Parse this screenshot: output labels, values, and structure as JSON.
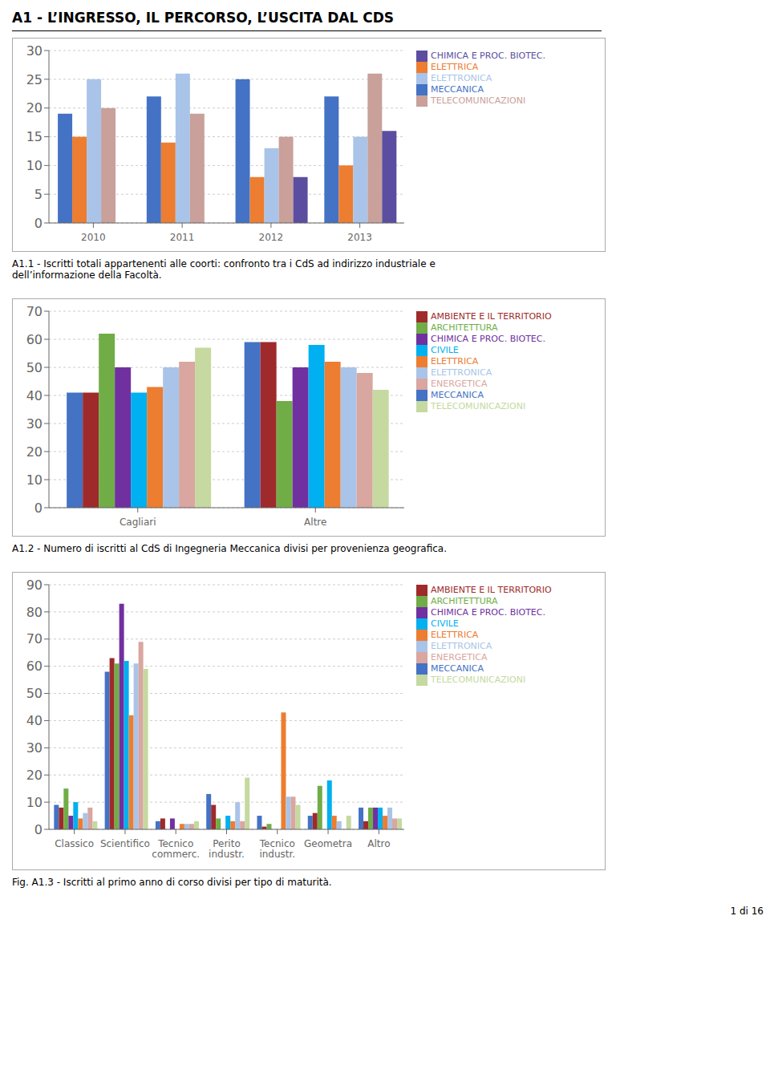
{
  "title": "A1 - L’INGRESSO, IL PERCORSO, L’USCITA DAL CDS",
  "annotations": [
    "1 di 16"
  ],
  "chart_data": [
    {
      "type": "bar",
      "title": "A1.1 - Iscritti totali appartenenti alle coorti: confronto tra i CdS ad indirizzo industriale e\ndell’informazione della Facoltà.",
      "categories": [
        "2010",
        "2011",
        "2012",
        "2013"
      ],
      "series": [
        {
          "name": "MECCANICA",
          "color": "#4472C4",
          "values": [
            19,
            22,
            25,
            22
          ]
        },
        {
          "name": "ELETTRICA",
          "color": "#ED7D31",
          "values": [
            15,
            14,
            8,
            10
          ]
        },
        {
          "name": "ELETTRONICA",
          "color": "#A9C4E8",
          "values": [
            25,
            26,
            13,
            15
          ]
        },
        {
          "name": "TELECOMUNICAZIONI",
          "color": "#C9A09A",
          "values": [
            20,
            19,
            15,
            26
          ]
        },
        {
          "name": "CHIMICA E PROC. BIOTEC.",
          "color": "#5B4EA0",
          "values": [
            0,
            0,
            8,
            16
          ]
        }
      ],
      "ylim": [
        0,
        30
      ],
      "yticks": [
        0,
        5,
        10,
        15,
        20,
        25,
        30
      ],
      "grid": true,
      "legend": "right"
    },
    {
      "type": "bar",
      "title": "A1.2 - Numero di iscritti al CdS di Ingegneria Meccanica divisi per provenienza geografica.",
      "categories": [
        "Cagliari",
        "Altre"
      ],
      "series": [
        {
          "name": "MECCANICA",
          "color": "#4472C4",
          "values": [
            41,
            59
          ]
        },
        {
          "name": "AMBIENTE E IL TERRITORIO",
          "color": "#9E2A2B",
          "values": [
            41,
            59
          ]
        },
        {
          "name": "ARCHITETTURA",
          "color": "#70AD47",
          "values": [
            62,
            38
          ]
        },
        {
          "name": "CHIMICA E PROC. BIOTEC.",
          "color": "#7030A0",
          "values": [
            50,
            50
          ]
        },
        {
          "name": "CIVILE",
          "color": "#00B0F0",
          "values": [
            41,
            58
          ]
        },
        {
          "name": "ELETTRICA",
          "color": "#ED7D31",
          "values": [
            43,
            52
          ]
        },
        {
          "name": "ELETTRONICA",
          "color": "#A9C4E8",
          "values": [
            50,
            50
          ]
        },
        {
          "name": "ENERGETICA",
          "color": "#D9A6A0",
          "values": [
            52,
            48
          ]
        },
        {
          "name": "TELECOMUNICAZIONI",
          "color": "#C5D9A0",
          "values": [
            57,
            42
          ]
        }
      ],
      "ylim": [
        0,
        70
      ],
      "yticks": [
        0,
        10,
        20,
        30,
        40,
        50,
        60,
        70
      ],
      "grid": true,
      "legend": "right"
    },
    {
      "type": "bar",
      "title": "Fig. A1.3 -  Iscritti al primo anno di corso divisi per tipo di maturità.",
      "categories": [
        "Classico",
        "Scientifico",
        "Tecnico\ncommerc.",
        "Perito\nindustr.",
        "Tecnico\nindustr.",
        "Geometra",
        "Altro"
      ],
      "series": [
        {
          "name": "MECCANICA",
          "color": "#4472C4",
          "values": [
            9,
            58,
            3,
            13,
            5,
            5,
            8
          ]
        },
        {
          "name": "AMBIENTE E IL TERRITORIO",
          "color": "#9E2A2B",
          "values": [
            8,
            63,
            4,
            9,
            1,
            6,
            3
          ]
        },
        {
          "name": "ARCHITETTURA",
          "color": "#70AD47",
          "values": [
            15,
            61,
            0,
            4,
            2,
            16,
            8
          ]
        },
        {
          "name": "CHIMICA E PROC. BIOTEC.",
          "color": "#7030A0",
          "values": [
            5,
            83,
            4,
            0,
            0,
            0,
            8
          ]
        },
        {
          "name": "CIVILE",
          "color": "#00B0F0",
          "values": [
            10,
            62,
            0,
            5,
            0,
            18,
            8
          ]
        },
        {
          "name": "ELETTRICA",
          "color": "#ED7D31",
          "values": [
            4,
            42,
            2,
            3,
            43,
            5,
            5
          ]
        },
        {
          "name": "ELETTRONICA",
          "color": "#A9C4E8",
          "values": [
            6,
            61,
            2,
            10,
            12,
            3,
            8
          ]
        },
        {
          "name": "ENERGETICA",
          "color": "#D9A6A0",
          "values": [
            8,
            69,
            2,
            3,
            12,
            0,
            4
          ]
        },
        {
          "name": "TELECOMUNICAZIONI",
          "color": "#C5D9A0",
          "values": [
            3,
            59,
            3,
            19,
            9,
            5,
            4
          ]
        }
      ],
      "ylim": [
        0,
        90
      ],
      "yticks": [
        0,
        10,
        20,
        30,
        40,
        50,
        60,
        70,
        80,
        90
      ],
      "grid": true,
      "legend": "right"
    }
  ]
}
